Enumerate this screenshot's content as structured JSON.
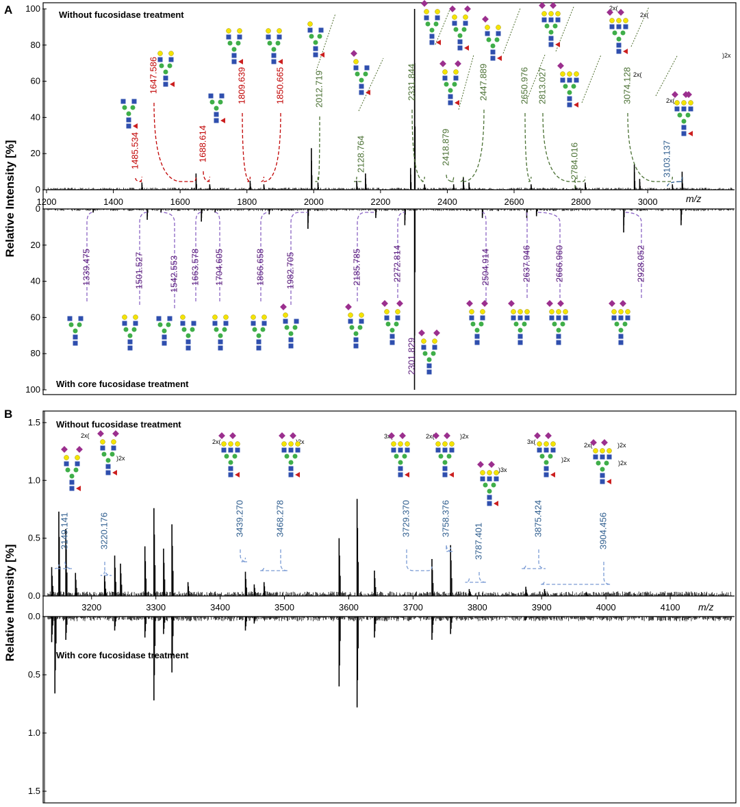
{
  "figure": {
    "panel_a_letter": "A",
    "panel_b_letter": "B",
    "y_label": "Relative Intensity [%]",
    "x_label": "m/z"
  },
  "colors": {
    "red": "#c00000",
    "green": "#4a7033",
    "blue": "#2e5d8e",
    "purple": "#5a1b7a",
    "axis": "#000000",
    "glycan_blue": "#2f4fae",
    "glycan_green": "#3fae49",
    "glycan_yellow": "#f4e400",
    "glycan_purple": "#9b2f8e",
    "glycan_red": "#cc1f1f"
  },
  "chart_data": [
    {
      "type": "bar",
      "title": "Without fucosidase treatment",
      "xlabel": "m/z",
      "ylabel": "Relative Intensity [%]",
      "xlim": [
        1200,
        3260
      ],
      "ylim": [
        0,
        100
      ],
      "x_ticks": [
        "1200",
        "1400",
        "1600",
        "1800",
        "2000",
        "2200",
        "2400",
        "2600",
        "2800",
        "3000"
      ],
      "y_ticks": [
        "0",
        "20",
        "40",
        "60",
        "80",
        "100"
      ],
      "peaks": [
        {
          "mz": 1485.534,
          "label": "1485.534",
          "color": "red"
        },
        {
          "mz": 1647.586,
          "label": "1647.586",
          "color": "red"
        },
        {
          "mz": 1688.614,
          "label": "1688.614",
          "color": "red"
        },
        {
          "mz": 1809.639,
          "label": "1809.639",
          "color": "red"
        },
        {
          "mz": 1850.665,
          "label": "1850.665",
          "color": "red"
        },
        {
          "mz": 2012.719,
          "label": "2012.719",
          "color": "green"
        },
        {
          "mz": 2128.764,
          "label": "2128.764",
          "color": "green"
        },
        {
          "mz": 2331.844,
          "label": "2331.844",
          "color": "green"
        },
        {
          "mz": 2418.879,
          "label": "2418.879",
          "color": "green"
        },
        {
          "mz": 2447.889,
          "label": "2447.889",
          "color": "green"
        },
        {
          "mz": 2650.976,
          "label": "2650.976",
          "color": "green"
        },
        {
          "mz": 2784.016,
          "label": "2784.016",
          "color": "green"
        },
        {
          "mz": 2813.027,
          "label": "2813.027",
          "color": "green"
        },
        {
          "mz": 3074.128,
          "label": "3074.128",
          "color": "green"
        },
        {
          "mz": 3103.137,
          "label": "3103.137",
          "color": "blue"
        }
      ],
      "bars": [
        {
          "x": 1485.5,
          "y": 4
        },
        {
          "x": 1647.6,
          "y": 9
        },
        {
          "x": 1688.6,
          "y": 3
        },
        {
          "x": 1809.6,
          "y": 5
        },
        {
          "x": 1850.7,
          "y": 3
        },
        {
          "x": 1993,
          "y": 23
        },
        {
          "x": 2012.7,
          "y": 4
        },
        {
          "x": 2128.8,
          "y": 5
        },
        {
          "x": 2155,
          "y": 9
        },
        {
          "x": 2290,
          "y": 12
        },
        {
          "x": 2302,
          "y": 100
        },
        {
          "x": 2331.8,
          "y": 3
        },
        {
          "x": 2418.9,
          "y": 3
        },
        {
          "x": 2447.9,
          "y": 7
        },
        {
          "x": 2465,
          "y": 4
        },
        {
          "x": 2650.9,
          "y": 3
        },
        {
          "x": 2784,
          "y": 2
        },
        {
          "x": 2813,
          "y": 4
        },
        {
          "x": 2960,
          "y": 14
        },
        {
          "x": 2976,
          "y": 6
        },
        {
          "x": 3074,
          "y": 3
        },
        {
          "x": 3103.1,
          "y": 10
        }
      ]
    },
    {
      "type": "bar",
      "title": "With core fucosidase treatment",
      "xlim": [
        1200,
        3260
      ],
      "ylim": [
        0,
        100
      ],
      "y_ticks": [
        "0",
        "20",
        "40",
        "60",
        "80",
        "100"
      ],
      "peaks": [
        {
          "mz": 1339.475,
          "label": "1339.475"
        },
        {
          "mz": 1501.527,
          "label": "1501.527"
        },
        {
          "mz": 1542.553,
          "label": "1542.553"
        },
        {
          "mz": 1663.578,
          "label": "1663.578"
        },
        {
          "mz": 1704.605,
          "label": "1704.605"
        },
        {
          "mz": 1866.658,
          "label": "1866.658"
        },
        {
          "mz": 1982.705,
          "label": "1982.705"
        },
        {
          "mz": 2185.785,
          "label": "2185.785"
        },
        {
          "mz": 2272.814,
          "label": "2272.814"
        },
        {
          "mz": 2301.829,
          "label": "2301.829"
        },
        {
          "mz": 2504.914,
          "label": "2504.914"
        },
        {
          "mz": 2637.946,
          "label": "2637.946"
        },
        {
          "mz": 2666.96,
          "label": "2666.960"
        },
        {
          "mz": 2928.052,
          "label": "2928.052"
        }
      ],
      "bars": [
        {
          "x": 1339.5,
          "y": 2
        },
        {
          "x": 1501.5,
          "y": 6
        },
        {
          "x": 1542.6,
          "y": 2
        },
        {
          "x": 1663.6,
          "y": 7
        },
        {
          "x": 1704.6,
          "y": 2
        },
        {
          "x": 1866.7,
          "y": 3
        },
        {
          "x": 1982.7,
          "y": 11
        },
        {
          "x": 2185.8,
          "y": 5
        },
        {
          "x": 2272.8,
          "y": 9
        },
        {
          "x": 2301.8,
          "y": 100
        },
        {
          "x": 2504.9,
          "y": 5
        },
        {
          "x": 2637.9,
          "y": 5
        },
        {
          "x": 2667,
          "y": 4
        },
        {
          "x": 2928.1,
          "y": 13
        },
        {
          "x": 3100,
          "y": 9
        }
      ]
    },
    {
      "type": "bar",
      "title": "Without fucosidase treatment",
      "xlabel": "m/z",
      "ylabel": "Relative Intensity [%]",
      "xlim": [
        3130,
        4200
      ],
      "ylim": [
        0,
        1.6
      ],
      "x_ticks": [
        "3200",
        "3300",
        "3400",
        "3500",
        "3600",
        "3700",
        "3800",
        "3900",
        "4000",
        "4100"
      ],
      "y_ticks": [
        "0.0",
        "0.5",
        "1.0",
        "1.5"
      ],
      "peaks": [
        {
          "mz": 3149.141,
          "label": "3149.141"
        },
        {
          "mz": 3220.176,
          "label": "3220.176"
        },
        {
          "mz": 3439.27,
          "label": "3439.270"
        },
        {
          "mz": 3468.278,
          "label": "3468.278"
        },
        {
          "mz": 3729.37,
          "label": "3729.370"
        },
        {
          "mz": 3758.376,
          "label": "3758.376"
        },
        {
          "mz": 3787.401,
          "label": "3787.401"
        },
        {
          "mz": 3875.424,
          "label": "3875.424"
        },
        {
          "mz": 3904.456,
          "label": "3904.456"
        }
      ],
      "bars": [
        {
          "x": 3138,
          "y": 0.25
        },
        {
          "x": 3149.1,
          "y": 0.73
        },
        {
          "x": 3160,
          "y": 0.58
        },
        {
          "x": 3175,
          "y": 0.2
        },
        {
          "x": 3220.2,
          "y": 0.18
        },
        {
          "x": 3236,
          "y": 0.35
        },
        {
          "x": 3245,
          "y": 0.28
        },
        {
          "x": 3283,
          "y": 0.43
        },
        {
          "x": 3297,
          "y": 0.76
        },
        {
          "x": 3312,
          "y": 0.41
        },
        {
          "x": 3325,
          "y": 0.62
        },
        {
          "x": 3350,
          "y": 0.12
        },
        {
          "x": 3439.3,
          "y": 0.21
        },
        {
          "x": 3453,
          "y": 0.1
        },
        {
          "x": 3468.3,
          "y": 0.12
        },
        {
          "x": 3585,
          "y": 0.5
        },
        {
          "x": 3613,
          "y": 0.84
        },
        {
          "x": 3640,
          "y": 0.22
        },
        {
          "x": 3729.4,
          "y": 0.32
        },
        {
          "x": 3758.4,
          "y": 0.44
        },
        {
          "x": 3787.4,
          "y": 0.06
        },
        {
          "x": 3875.4,
          "y": 0.08
        },
        {
          "x": 3904.5,
          "y": 0.06
        },
        {
          "x": 3970,
          "y": 0.03
        }
      ]
    },
    {
      "type": "bar",
      "title": "With core fucosidase treatment",
      "xlim": [
        3130,
        4200
      ],
      "ylim": [
        0,
        1.6
      ],
      "y_ticks": [
        "0.0",
        "0.5",
        "1.0",
        "1.5"
      ],
      "bars": [
        {
          "x": 3138,
          "y": 0.22
        },
        {
          "x": 3143,
          "y": 0.66
        },
        {
          "x": 3160,
          "y": 0.2
        },
        {
          "x": 3236,
          "y": 0.12
        },
        {
          "x": 3283,
          "y": 0.18
        },
        {
          "x": 3297,
          "y": 0.72
        },
        {
          "x": 3312,
          "y": 0.15
        },
        {
          "x": 3325,
          "y": 0.48
        },
        {
          "x": 3439.3,
          "y": 0.12
        },
        {
          "x": 3453,
          "y": 0.06
        },
        {
          "x": 3585,
          "y": 0.6
        },
        {
          "x": 3613,
          "y": 0.78
        },
        {
          "x": 3640,
          "y": 0.18
        },
        {
          "x": 3729.4,
          "y": 0.2
        },
        {
          "x": 3758.4,
          "y": 0.15
        },
        {
          "x": 3875.4,
          "y": 0.03
        }
      ]
    }
  ]
}
